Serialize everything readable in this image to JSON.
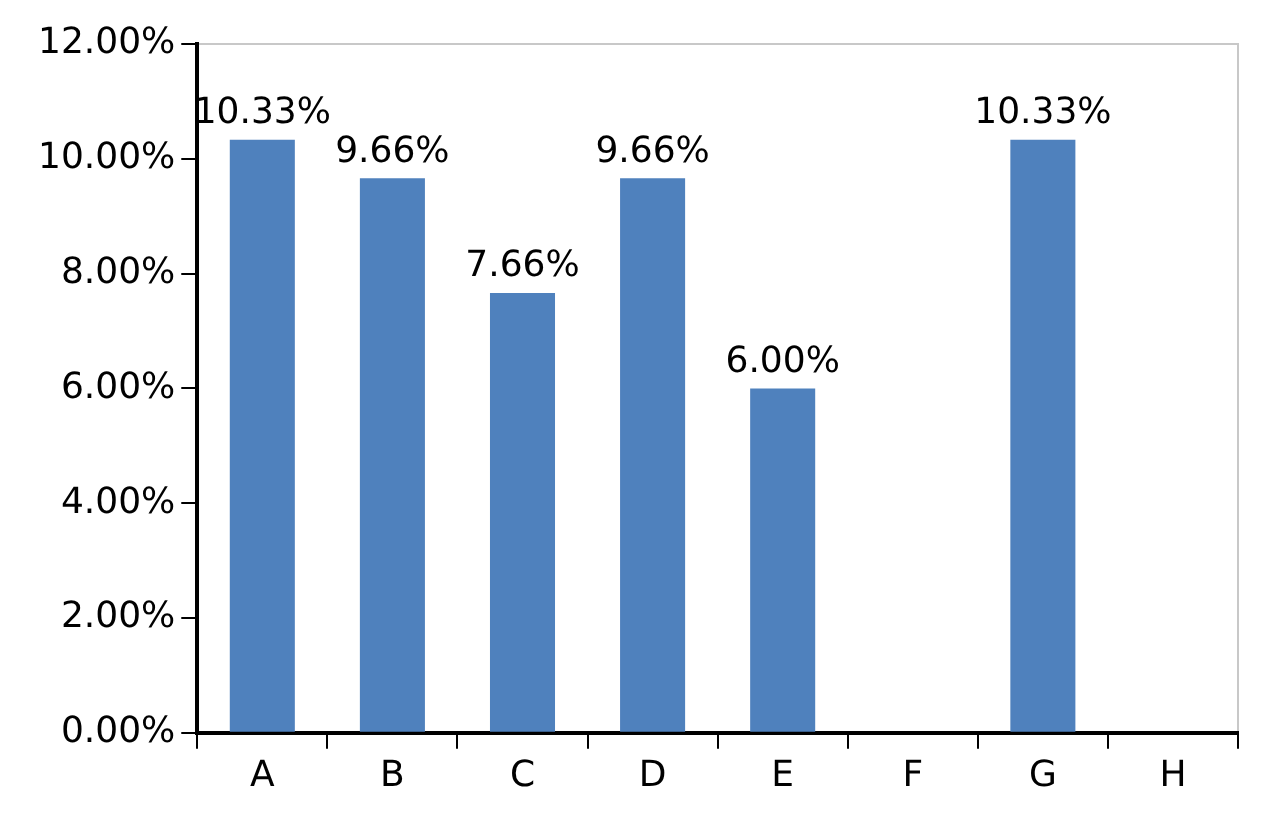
{
  "chart_data": {
    "type": "bar",
    "categories": [
      "A",
      "B",
      "C",
      "D",
      "E",
      "F",
      "G",
      "H"
    ],
    "values": [
      10.33,
      9.66,
      7.66,
      9.66,
      6.0,
      null,
      10.33,
      null
    ],
    "value_labels": [
      "10.33%",
      "9.66%",
      "7.66%",
      "9.66%",
      "6.00%",
      null,
      "10.33%",
      null
    ],
    "color": "#4f81bd",
    "ylim": [
      0,
      12
    ],
    "yticks": [
      {
        "value": 0,
        "label": "0.00%"
      },
      {
        "value": 2,
        "label": "2.00%"
      },
      {
        "value": 4,
        "label": "4.00%"
      },
      {
        "value": 6,
        "label": "6.00%"
      },
      {
        "value": 8,
        "label": "8.00%"
      },
      {
        "value": 10,
        "label": "10.00%"
      },
      {
        "value": 12,
        "label": "12.00%"
      }
    ],
    "grid": false,
    "legend": false
  }
}
